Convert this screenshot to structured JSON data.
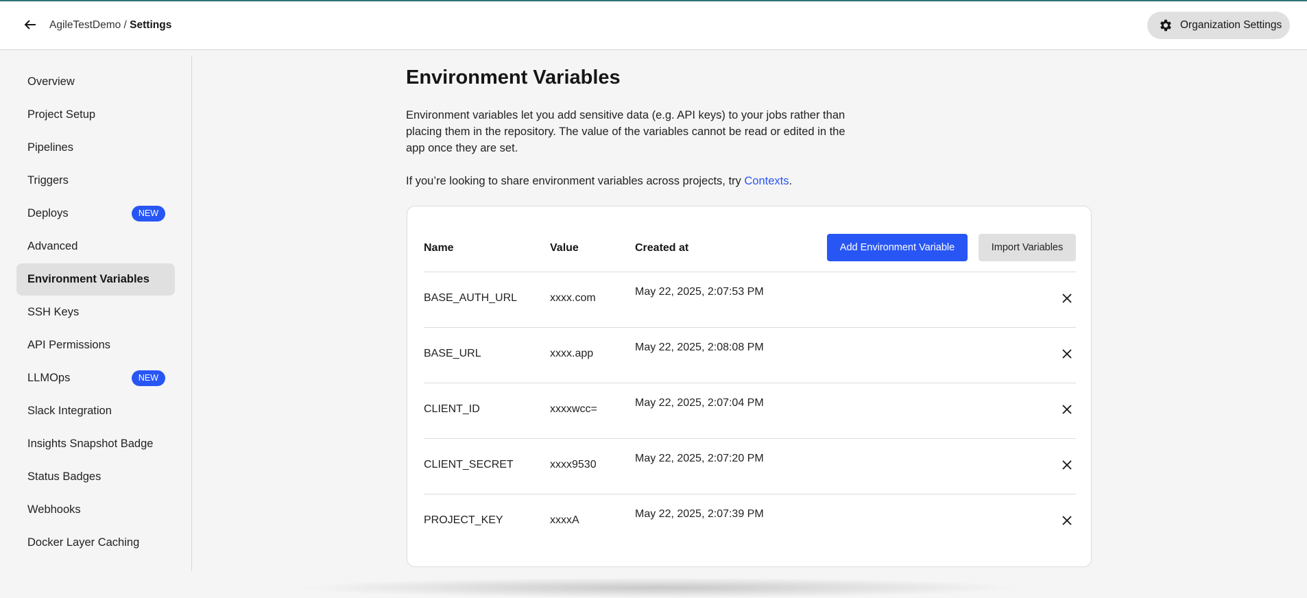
{
  "header": {
    "breadcrumb_project": "AgileTestDemo",
    "breadcrumb_sep": " / ",
    "breadcrumb_current": "Settings",
    "org_settings_label": "Organization Settings"
  },
  "sidebar": {
    "items": [
      {
        "label": "Overview"
      },
      {
        "label": "Project Setup"
      },
      {
        "label": "Pipelines"
      },
      {
        "label": "Triggers"
      },
      {
        "label": "Deploys",
        "badge": "NEW"
      },
      {
        "label": "Advanced"
      },
      {
        "label": "Environment Variables",
        "active": true
      },
      {
        "label": "SSH Keys"
      },
      {
        "label": "API Permissions"
      },
      {
        "label": "LLMOps",
        "badge": "NEW"
      },
      {
        "label": "Slack Integration"
      },
      {
        "label": "Insights Snapshot Badge"
      },
      {
        "label": "Status Badges"
      },
      {
        "label": "Webhooks"
      },
      {
        "label": "Docker Layer Caching"
      }
    ]
  },
  "main": {
    "title": "Environment Variables",
    "description": "Environment variables let you add sensitive data (e.g. API keys) to your jobs rather than placing them in the repository. The value of the variables cannot be read or edited in the app once they are set.",
    "contexts_prefix": "If you’re looking to share environment variables across projects, try ",
    "contexts_link": "Contexts",
    "contexts_suffix": ".",
    "table": {
      "columns": [
        "Name",
        "Value",
        "Created at"
      ],
      "add_button": "Add Environment Variable",
      "import_button": "Import Variables",
      "rows": [
        {
          "name": "BASE_AUTH_URL",
          "value": "xxxx.com",
          "created": "May 22, 2025, 2:07:53 PM"
        },
        {
          "name": "BASE_URL",
          "value": "xxxx.app",
          "created": "May 22, 2025, 2:08:08 PM"
        },
        {
          "name": "CLIENT_ID",
          "value": "xxxxwcc=",
          "created": "May 22, 2025, 2:07:04 PM"
        },
        {
          "name": "CLIENT_SECRET",
          "value": "xxxx9530",
          "created": "May 22, 2025, 2:07:20 PM"
        },
        {
          "name": "PROJECT_KEY",
          "value": "xxxxA",
          "created": "May 22, 2025, 2:07:39 PM"
        }
      ]
    }
  },
  "colors": {
    "accent": "#2856f5",
    "active_bg": "#e0e0e0",
    "top_line": "#2f7474"
  }
}
